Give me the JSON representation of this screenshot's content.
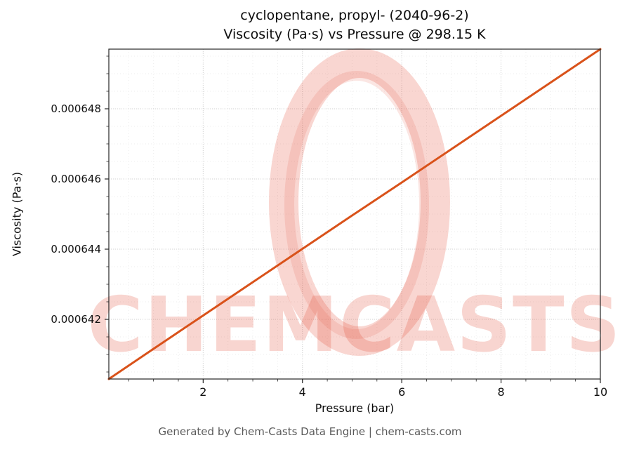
{
  "page": {
    "title_line1": "cyclopentane, propyl- (2040-96-2)",
    "title_line2": "Viscosity (Pa·s) vs Pressure @ 298.15 K",
    "footer": "Generated by Chem-Casts Data Engine | chem-casts.com"
  },
  "watermark": {
    "text": "CHEMCASTS",
    "color": "#e2452c",
    "opacity": 0.22
  },
  "chart_data": {
    "type": "line",
    "title": "cyclopentane, propyl- (2040-96-2) — Viscosity (Pa·s) vs Pressure @ 298.15 K",
    "xlabel": "Pressure (bar)",
    "ylabel": "Viscosity (Pa·s)",
    "xlim": [
      0.1,
      10
    ],
    "ylim": [
      0.0006403,
      0.0006497
    ],
    "x_ticks": [
      2,
      4,
      6,
      8,
      10
    ],
    "x_tick_labels": [
      "2",
      "4",
      "6",
      "8",
      "10"
    ],
    "y_ticks": [
      0.000642,
      0.000644,
      0.000646,
      0.000648
    ],
    "y_tick_labels": [
      "0.000642",
      "0.000644",
      "0.000646",
      "0.000648"
    ],
    "x_minor_step": 0.5,
    "y_minor_step": 5e-07,
    "grid": true,
    "legend": "none",
    "line_color": "#d9521a",
    "line_width": 3,
    "series": [
      {
        "name": "Viscosity",
        "x": [
          0.1,
          1,
          2,
          3,
          4,
          5,
          6,
          7,
          8,
          9,
          10
        ],
        "y": [
          0.0006403,
          0.00064116,
          0.00064211,
          0.00064306,
          0.00064401,
          0.00064496,
          0.0006459,
          0.00064685,
          0.0006478,
          0.00064875,
          0.0006497
        ]
      }
    ]
  }
}
